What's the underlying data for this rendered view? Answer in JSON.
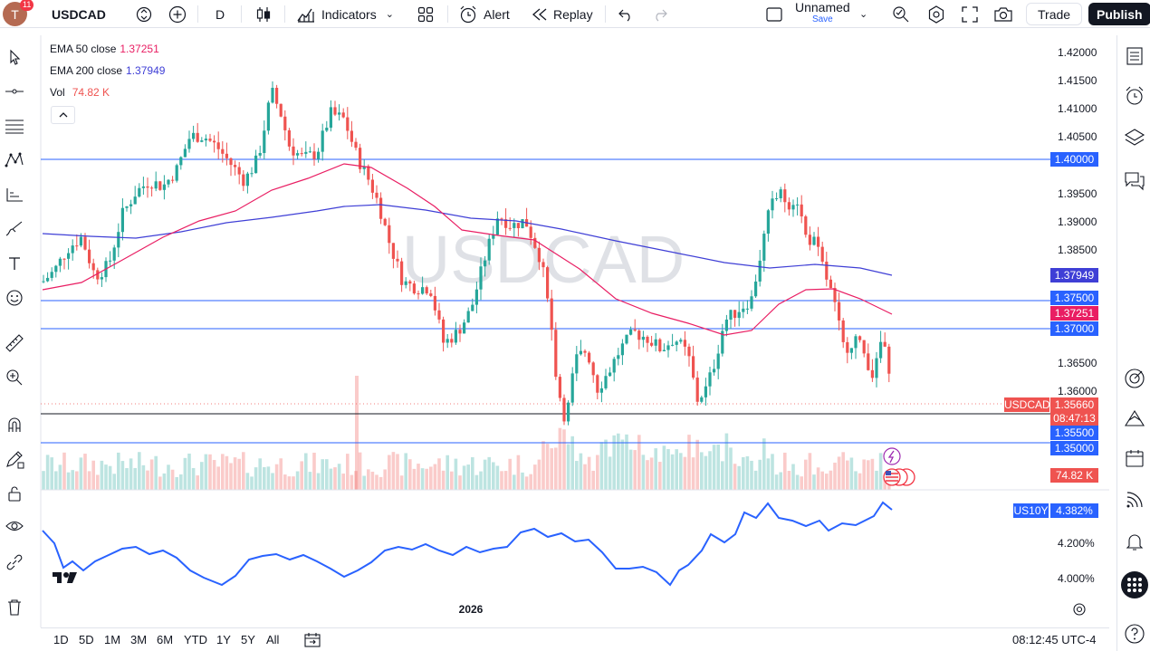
{
  "header": {
    "avatar_letter": "T",
    "notification_count": "11",
    "symbol": "USDCAD",
    "interval": "D",
    "indicators_label": "Indicators",
    "alert_label": "Alert",
    "replay_label": "Replay",
    "layout_name": "Unnamed",
    "save_label": "Save",
    "trade_label": "Trade",
    "publish_label": "Publish"
  },
  "legend": {
    "ema50_label": "EMA 50 close",
    "ema50_value": "1.37251",
    "ema200_label": "EMA 200 close",
    "ema200_value": "1.37949",
    "vol_label": "Vol",
    "vol_value": "74.82 K"
  },
  "watermark": "USDCAD",
  "price_scale": {
    "ticks": [
      "1.42000",
      "1.41500",
      "1.41000",
      "1.40500",
      "1.39500",
      "1.39000",
      "1.38500",
      "1.36500",
      "1.36000"
    ],
    "labels": {
      "level_1_40": "1.40000",
      "ema200": "1.37949",
      "level_1_375": "1.37500",
      "ema50": "1.37251",
      "level_1_37": "1.37000",
      "symbol_tag": "USDCAD",
      "last_price": "1.35660",
      "countdown": "08:47:13",
      "level_1_355": "1.35500",
      "level_1_35": "1.35000",
      "volume": "74.82 K"
    }
  },
  "lower_pane": {
    "symbol": "US10Y",
    "value": "4.382%",
    "ticks": [
      "4.200%",
      "4.000%"
    ]
  },
  "time_axis": {
    "year_label": "2026"
  },
  "bottom": {
    "ranges": [
      "1D",
      "5D",
      "1M",
      "3M",
      "6M",
      "YTD",
      "1Y",
      "5Y",
      "All"
    ],
    "clock": "08:12:45 UTC-4"
  },
  "colors": {
    "up": "#26a69a",
    "down": "#ef5350",
    "ema50": "#e91e63",
    "ema200": "#3f3fd6",
    "hline": "#2962ff",
    "us10y": "#2962ff"
  }
}
